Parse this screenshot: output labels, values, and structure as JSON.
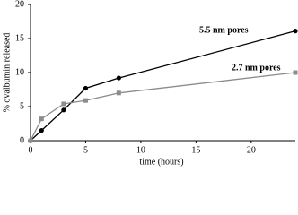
{
  "chart_data": {
    "type": "line",
    "x_label": "time (hours)",
    "y_label": "% ovalbumin released",
    "xlim": [
      0,
      24
    ],
    "xticks": [
      0,
      5,
      10,
      15,
      20
    ],
    "ylim": [
      0,
      20
    ],
    "yticks": [
      0,
      5,
      10,
      15,
      20
    ],
    "series": [
      {
        "name": "5.5 nm pores",
        "color": "#000000",
        "marker": "circle",
        "x": [
          0,
          1,
          3,
          5,
          8,
          24
        ],
        "values": [
          0,
          1.5,
          4.5,
          7.7,
          9.2,
          16.1
        ]
      },
      {
        "name": "2.7 nm pores",
        "color": "#8c8c8c",
        "marker": "square",
        "x": [
          0,
          1,
          3,
          5,
          8,
          24
        ],
        "values": [
          0,
          3.2,
          5.4,
          5.9,
          7.0,
          10.0
        ]
      }
    ]
  }
}
